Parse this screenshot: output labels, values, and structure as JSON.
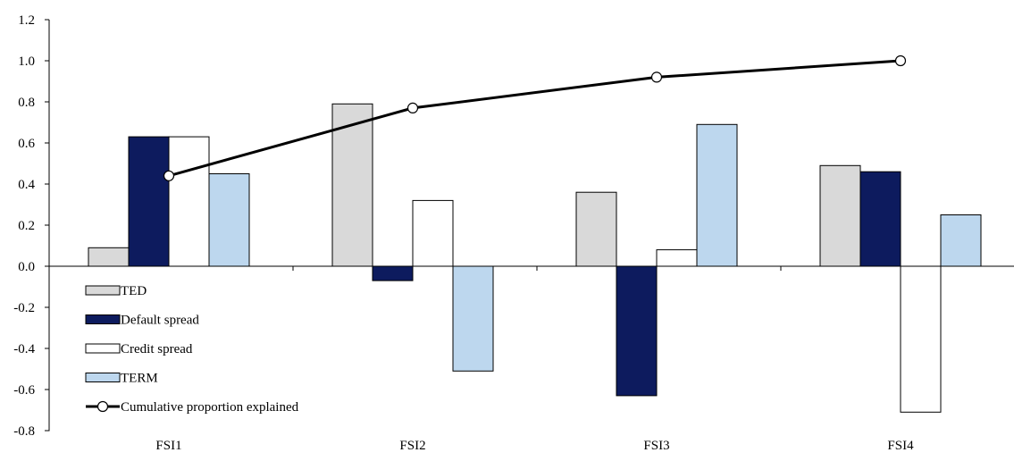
{
  "chart_data": {
    "type": "bar",
    "categories": [
      "FSI1",
      "FSI2",
      "FSI3",
      "FSI4"
    ],
    "series": [
      {
        "name": "TED",
        "type": "bar",
        "color": "#d9d9d9",
        "values": [
          0.09,
          0.79,
          0.36,
          0.49
        ]
      },
      {
        "name": "Default spread",
        "type": "bar",
        "color": "#0d1b5e",
        "values": [
          0.63,
          -0.07,
          -0.63,
          0.46
        ]
      },
      {
        "name": "Credit spread",
        "type": "bar",
        "color": "#ffffff",
        "values": [
          0.63,
          0.32,
          0.08,
          -0.71
        ]
      },
      {
        "name": "TERM",
        "type": "bar",
        "color": "#bdd7ee",
        "values": [
          0.45,
          -0.51,
          0.69,
          0.25
        ]
      },
      {
        "name": "Cumulative proportion explained",
        "type": "line",
        "color": "#000000",
        "marker": "open-circle",
        "values": [
          0.44,
          0.77,
          0.92,
          1.0
        ]
      }
    ],
    "yticks": [
      "1.2",
      "1.0",
      "0.8",
      "0.6",
      "0.4",
      "0.2",
      "0.0",
      "-0.2",
      "-0.4",
      "-0.6",
      "-0.8"
    ],
    "ylim": [
      -0.8,
      1.2
    ],
    "grid": false,
    "legend_position": "bottom-left"
  }
}
